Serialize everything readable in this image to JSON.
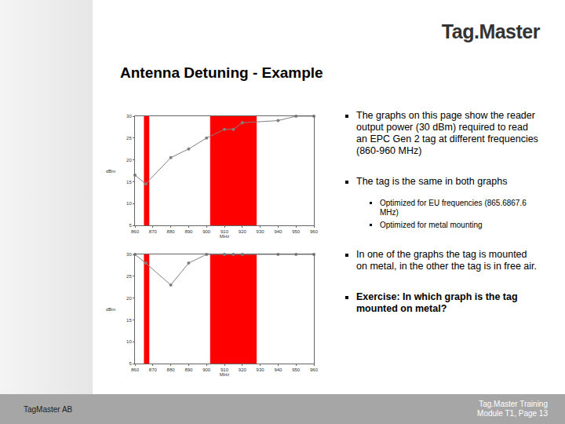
{
  "header": {
    "logo": "Tag.Master",
    "title": "Antenna Detuning - Example"
  },
  "bullets": [
    {
      "text": "The graphs on this page show the reader output power (30 dBm) required to read an EPC Gen 2 tag at different frequencies (860-960 MHz)"
    },
    {
      "text": "The tag is the same in both graphs",
      "sub": [
        "Optimized for EU frequencies (865.6867.6 MHz)",
        "Optimized for metal mounting"
      ]
    },
    {
      "text": "In one of the graphs the tag is mounted on metal, in the other the tag is in free air."
    },
    {
      "text": "Exercise: In which graph is the tag mounted on metal?",
      "bold": true
    }
  ],
  "footer": {
    "left": "TagMaster AB",
    "right": [
      "Tag.Master Training",
      "Module T1, Page 13"
    ]
  },
  "chart_data": [
    {
      "type": "line",
      "x": [
        860,
        866,
        880,
        890,
        900,
        910,
        915,
        920,
        940,
        950,
        960
      ],
      "values": [
        16.5,
        14.5,
        20.5,
        22.5,
        25,
        27,
        27,
        28.5,
        29,
        30,
        30
      ],
      "xlim": [
        860,
        960
      ],
      "xticks": [
        860,
        870,
        880,
        890,
        900,
        910,
        920,
        930,
        940,
        950,
        960
      ],
      "ylim": [
        5,
        30
      ],
      "yticks": [
        5,
        10,
        15,
        20,
        25,
        30
      ],
      "xlabel": "MHz",
      "ylabel": "dBm",
      "grid": false,
      "color": "#808080",
      "marker": "circle",
      "bands": [
        [
          865,
          868
        ],
        [
          902,
          928
        ]
      ]
    },
    {
      "type": "line",
      "x": [
        860,
        866,
        880,
        890,
        900,
        910,
        915,
        920,
        940,
        950,
        960
      ],
      "values": [
        30,
        28,
        23,
        28,
        30,
        30,
        30,
        30,
        30,
        30,
        30
      ],
      "xlim": [
        860,
        960
      ],
      "xticks": [
        860,
        870,
        880,
        890,
        900,
        910,
        920,
        930,
        940,
        950,
        960
      ],
      "ylim": [
        5,
        30
      ],
      "yticks": [
        5,
        10,
        15,
        20,
        25,
        30
      ],
      "xlabel": "MHz",
      "ylabel": "dBm",
      "grid": false,
      "color": "#808080",
      "marker": "circle",
      "bands": [
        [
          865,
          868
        ],
        [
          902,
          928
        ]
      ]
    }
  ]
}
